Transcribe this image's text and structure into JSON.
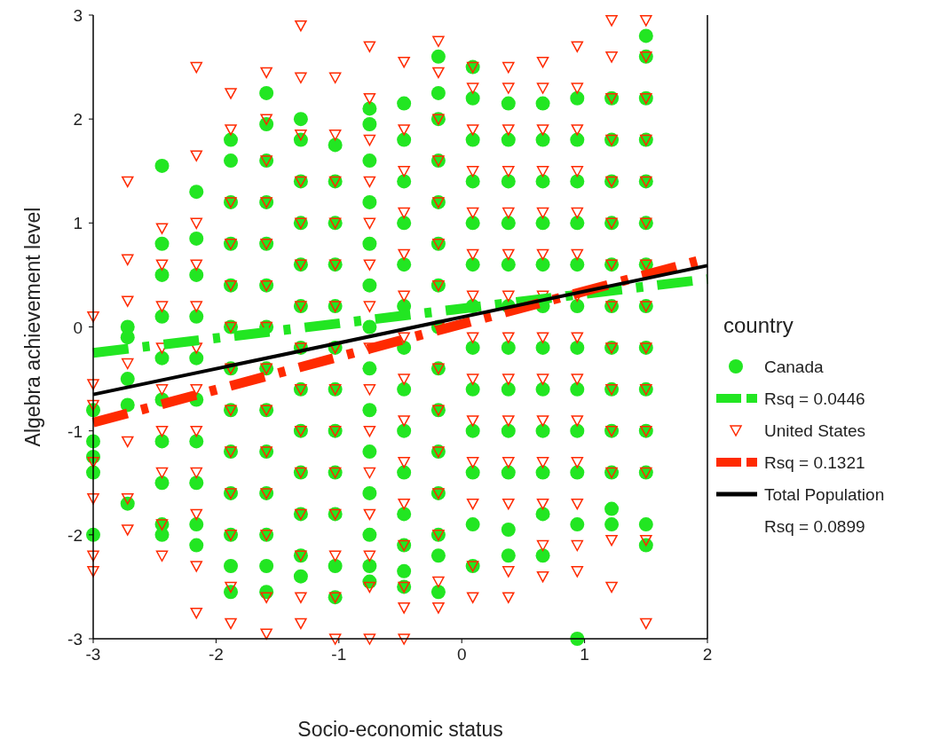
{
  "chart_data": {
    "type": "scatter",
    "xlabel": "Socio-economic status",
    "ylabel": "Algebra achievement level",
    "legend_title": "country",
    "legend": "right",
    "grid": false,
    "xlim": [
      -3,
      2
    ],
    "xticks": [
      -3,
      -2,
      -1,
      0,
      1,
      2
    ],
    "ylim": [
      -3,
      3
    ],
    "yticks": [
      -3,
      -2,
      -1,
      0,
      1,
      2,
      3
    ],
    "annotations": [
      "Rsq = 0.0899"
    ],
    "series": [
      {
        "name": "Canada",
        "marker": "circle",
        "color": "#22e622",
        "x": [
          -3,
          -3,
          -3,
          -3,
          -3,
          -2.72,
          -2.72,
          -2.72,
          -2.72,
          -2.72,
          -2.44,
          -2.44,
          -2.44,
          -2.44,
          -2.44,
          -2.44,
          -2.44,
          -2.44,
          -2.44,
          -2.44,
          -2.16,
          -2.16,
          -2.16,
          -2.16,
          -2.16,
          -2.16,
          -2.16,
          -2.16,
          -2.16,
          -2.16,
          -1.88,
          -1.88,
          -1.88,
          -1.88,
          -1.88,
          -1.88,
          -1.88,
          -1.88,
          -1.88,
          -1.88,
          -1.88,
          -1.88,
          -1.88,
          -1.59,
          -1.59,
          -1.59,
          -1.59,
          -1.59,
          -1.59,
          -1.59,
          -1.59,
          -1.59,
          -1.59,
          -1.59,
          -1.59,
          -1.59,
          -1.59,
          -1.31,
          -1.31,
          -1.31,
          -1.31,
          -1.31,
          -1.31,
          -1.31,
          -1.31,
          -1.31,
          -1.31,
          -1.31,
          -1.31,
          -1.31,
          -1.03,
          -1.03,
          -1.03,
          -1.03,
          -1.03,
          -1.03,
          -1.03,
          -1.03,
          -1.03,
          -1.03,
          -1.03,
          -1.03,
          -0.75,
          -0.75,
          -0.75,
          -0.75,
          -0.75,
          -0.75,
          -0.75,
          -0.75,
          -0.75,
          -0.75,
          -0.75,
          -0.75,
          -0.75,
          -0.75,
          -0.47,
          -0.47,
          -0.47,
          -0.47,
          -0.47,
          -0.47,
          -0.47,
          -0.47,
          -0.47,
          -0.47,
          -0.47,
          -0.47,
          -0.47,
          -0.47,
          -0.19,
          -0.19,
          -0.19,
          -0.19,
          -0.19,
          -0.19,
          -0.19,
          -0.19,
          -0.19,
          -0.19,
          -0.19,
          -0.19,
          -0.19,
          -0.19,
          -0.19,
          0.09,
          0.09,
          0.09,
          0.09,
          0.09,
          0.09,
          0.09,
          0.09,
          0.09,
          0.09,
          0.09,
          0.09,
          0.09,
          0.38,
          0.38,
          0.38,
          0.38,
          0.38,
          0.38,
          0.38,
          0.38,
          0.38,
          0.38,
          0.38,
          0.38,
          0.66,
          0.66,
          0.66,
          0.66,
          0.66,
          0.66,
          0.66,
          0.66,
          0.66,
          0.66,
          0.66,
          0.66,
          0.94,
          0.94,
          0.94,
          0.94,
          0.94,
          0.94,
          0.94,
          0.94,
          0.94,
          0.94,
          0.94,
          0.94,
          1.22,
          1.22,
          1.22,
          1.22,
          1.22,
          1.22,
          1.22,
          1.22,
          1.22,
          1.22,
          1.22,
          1.22,
          1.5,
          1.5,
          1.5,
          1.5,
          1.5,
          1.5,
          1.5,
          1.5,
          1.5,
          1.5,
          1.5,
          1.5,
          1.5,
          1.5
        ],
        "values": [
          -0.8,
          -1.1,
          -1.25,
          -1.4,
          -2.0,
          0,
          -0.1,
          -0.5,
          -0.75,
          -1.7,
          1.55,
          0.8,
          0.5,
          0.1,
          -0.3,
          -0.7,
          -1.1,
          -1.5,
          -1.9,
          -2.0,
          1.3,
          0.85,
          0.5,
          0.1,
          -0.3,
          -0.7,
          -1.1,
          -1.5,
          -1.9,
          -2.1,
          1.8,
          1.6,
          1.2,
          0.8,
          0.4,
          0,
          -0.4,
          -0.8,
          -1.2,
          -1.6,
          -2.0,
          -2.3,
          -2.55,
          2.25,
          1.95,
          1.6,
          1.2,
          0.8,
          0.4,
          0,
          -0.4,
          -0.8,
          -1.2,
          -1.6,
          -2.0,
          -2.3,
          -2.55,
          2.0,
          1.8,
          1.4,
          1.0,
          0.6,
          0.2,
          -0.2,
          -0.6,
          -1.0,
          -1.4,
          -1.8,
          -2.2,
          -2.4,
          1.75,
          1.4,
          1.0,
          0.6,
          0.2,
          -0.2,
          -0.6,
          -1.0,
          -1.4,
          -1.8,
          -2.3,
          -2.6,
          2.1,
          1.95,
          1.6,
          1.2,
          0.8,
          0.4,
          0,
          -0.4,
          -0.8,
          -1.2,
          -1.6,
          -2.0,
          -2.3,
          -2.45,
          2.15,
          1.8,
          1.4,
          1.0,
          0.6,
          0.2,
          -0.2,
          -0.6,
          -1.0,
          -1.4,
          -1.8,
          -2.1,
          -2.35,
          -2.5,
          2.6,
          2.25,
          2.0,
          1.6,
          1.2,
          0.8,
          0.4,
          0,
          -0.4,
          -0.8,
          -1.2,
          -1.6,
          -2.0,
          -2.2,
          -2.55,
          2.5,
          2.2,
          1.8,
          1.4,
          1.0,
          0.6,
          0.2,
          -0.2,
          -0.6,
          -1.0,
          -1.4,
          -1.9,
          -2.3,
          2.15,
          1.8,
          1.4,
          1.0,
          0.6,
          0.2,
          -0.2,
          -0.6,
          -1.0,
          -1.4,
          -1.95,
          -2.2,
          2.15,
          1.8,
          1.4,
          1.0,
          0.6,
          0.2,
          -0.2,
          -0.6,
          -1.0,
          -1.4,
          -1.8,
          -2.2,
          2.2,
          1.8,
          1.4,
          1.0,
          0.6,
          0.2,
          -0.2,
          -0.6,
          -1.0,
          -1.4,
          -1.9,
          -3.0,
          2.2,
          1.8,
          1.4,
          1.0,
          0.6,
          0.2,
          -0.2,
          -0.6,
          -1.0,
          -1.4,
          -1.75,
          -1.9,
          2.8,
          2.6,
          2.2,
          1.8,
          1.4,
          1.0,
          0.6,
          0.2,
          -0.2,
          -0.6,
          -1.0,
          -1.4,
          -1.9,
          -2.1
        ]
      },
      {
        "name": "Rsq = 0.0446",
        "type": "line",
        "line_style": "dashed",
        "marker": "none",
        "color": "#22e622",
        "x": [
          -3,
          2
        ],
        "values": [
          -0.25,
          0.46
        ]
      },
      {
        "name": "United States",
        "marker": "triangle",
        "color": "#ff2a00",
        "x": [
          -3,
          -3,
          -3,
          -3,
          -3,
          -3,
          -3,
          -2.72,
          -2.72,
          -2.72,
          -2.72,
          -2.72,
          -2.72,
          -2.72,
          -2.44,
          -2.44,
          -2.44,
          -2.44,
          -2.44,
          -2.44,
          -2.44,
          -2.44,
          -2.44,
          -2.16,
          -2.16,
          -2.16,
          -2.16,
          -2.16,
          -2.16,
          -2.16,
          -2.16,
          -2.16,
          -2.16,
          -2.16,
          -2.16,
          -1.88,
          -1.88,
          -1.88,
          -1.88,
          -1.88,
          -1.88,
          -1.88,
          -1.88,
          -1.88,
          -1.88,
          -1.88,
          -1.88,
          -1.88,
          -1.59,
          -1.59,
          -1.59,
          -1.59,
          -1.59,
          -1.59,
          -1.59,
          -1.59,
          -1.59,
          -1.59,
          -1.59,
          -1.59,
          -1.59,
          -1.59,
          -1.31,
          -1.31,
          -1.31,
          -1.31,
          -1.31,
          -1.31,
          -1.31,
          -1.31,
          -1.31,
          -1.31,
          -1.31,
          -1.31,
          -1.31,
          -1.31,
          -1.31,
          -1.03,
          -1.03,
          -1.03,
          -1.03,
          -1.03,
          -1.03,
          -1.03,
          -1.03,
          -1.03,
          -1.03,
          -1.03,
          -1.03,
          -1.03,
          -1.03,
          -0.75,
          -0.75,
          -0.75,
          -0.75,
          -0.75,
          -0.75,
          -0.75,
          -0.75,
          -0.75,
          -0.75,
          -0.75,
          -0.75,
          -0.75,
          -0.75,
          -0.75,
          -0.47,
          -0.47,
          -0.47,
          -0.47,
          -0.47,
          -0.47,
          -0.47,
          -0.47,
          -0.47,
          -0.47,
          -0.47,
          -0.47,
          -0.47,
          -0.47,
          -0.47,
          -0.19,
          -0.19,
          -0.19,
          -0.19,
          -0.19,
          -0.19,
          -0.19,
          -0.19,
          -0.19,
          -0.19,
          -0.19,
          -0.19,
          -0.19,
          -0.19,
          -0.19,
          0.09,
          0.09,
          0.09,
          0.09,
          0.09,
          0.09,
          0.09,
          0.09,
          0.09,
          0.09,
          0.09,
          0.09,
          0.09,
          0.09,
          0.38,
          0.38,
          0.38,
          0.38,
          0.38,
          0.38,
          0.38,
          0.38,
          0.38,
          0.38,
          0.38,
          0.38,
          0.38,
          0.38,
          0.66,
          0.66,
          0.66,
          0.66,
          0.66,
          0.66,
          0.66,
          0.66,
          0.66,
          0.66,
          0.66,
          0.66,
          0.66,
          0.66,
          0.94,
          0.94,
          0.94,
          0.94,
          0.94,
          0.94,
          0.94,
          0.94,
          0.94,
          0.94,
          0.94,
          0.94,
          0.94,
          0.94,
          1.22,
          1.22,
          1.22,
          1.22,
          1.22,
          1.22,
          1.22,
          1.22,
          1.22,
          1.22,
          1.22,
          1.22,
          1.22,
          1.22,
          1.5,
          1.5,
          1.5,
          1.5,
          1.5,
          1.5,
          1.5,
          1.5,
          1.5,
          1.5,
          1.5,
          1.5,
          1.5,
          1.5
        ],
        "values": [
          0.1,
          -0.55,
          -0.75,
          -1.3,
          -1.65,
          -2.2,
          -2.35,
          1.4,
          0.65,
          0.25,
          -0.35,
          -1.1,
          -1.65,
          -1.95,
          0.95,
          0.6,
          0.2,
          -0.2,
          -0.6,
          -1.0,
          -1.4,
          -1.9,
          -2.2,
          2.5,
          1.65,
          1.0,
          0.6,
          0.2,
          -0.2,
          -0.6,
          -1.0,
          -1.4,
          -1.8,
          -2.3,
          -2.75,
          2.25,
          1.9,
          1.2,
          0.8,
          0.4,
          0,
          -0.4,
          -0.8,
          -1.2,
          -1.6,
          -2.0,
          -2.5,
          -2.85,
          2.45,
          2.0,
          1.6,
          1.2,
          0.8,
          0.4,
          0,
          -0.4,
          -0.8,
          -1.2,
          -1.6,
          -2.0,
          -2.6,
          -2.95,
          2.9,
          2.4,
          1.85,
          1.4,
          1.0,
          0.6,
          0.2,
          -0.2,
          -0.6,
          -1.0,
          -1.4,
          -1.8,
          -2.2,
          -2.6,
          -2.85,
          2.4,
          1.85,
          1.4,
          1.0,
          0.6,
          0.2,
          -0.2,
          -0.6,
          -1.0,
          -1.4,
          -1.8,
          -2.2,
          -2.6,
          -3.0,
          2.7,
          2.2,
          1.8,
          1.4,
          1.0,
          0.6,
          0.2,
          -0.2,
          -0.6,
          -1.0,
          -1.4,
          -1.8,
          -2.2,
          -2.5,
          -3.0,
          2.55,
          1.9,
          1.5,
          1.1,
          0.7,
          0.3,
          -0.1,
          -0.5,
          -0.9,
          -1.3,
          -1.7,
          -2.1,
          -2.5,
          -2.7,
          -3.0,
          2.75,
          2.45,
          2.0,
          1.6,
          1.2,
          0.8,
          0.4,
          0,
          -0.4,
          -0.8,
          -1.2,
          -1.6,
          -2.0,
          -2.45,
          -2.7,
          2.5,
          2.3,
          1.9,
          1.5,
          1.1,
          0.7,
          0.3,
          -0.1,
          -0.5,
          -0.9,
          -1.3,
          -1.7,
          -2.3,
          -2.6,
          2.5,
          2.3,
          1.9,
          1.5,
          1.1,
          0.7,
          0.3,
          -0.1,
          -0.5,
          -0.9,
          -1.3,
          -1.7,
          -2.35,
          -2.6,
          2.55,
          2.3,
          1.9,
          1.5,
          1.1,
          0.7,
          0.3,
          -0.1,
          -0.5,
          -0.9,
          -1.3,
          -1.7,
          -2.1,
          -2.4,
          2.7,
          2.3,
          1.9,
          1.5,
          1.1,
          0.7,
          0.3,
          -0.1,
          -0.5,
          -0.9,
          -1.3,
          -1.7,
          -2.1,
          -2.35,
          2.95,
          2.6,
          2.2,
          1.8,
          1.4,
          1.0,
          0.6,
          0.2,
          -0.2,
          -0.6,
          -1.0,
          -1.4,
          -2.05,
          -2.5,
          2.95,
          2.6,
          2.2,
          1.8,
          1.4,
          1.0,
          0.6,
          0.2,
          -0.2,
          -0.6,
          -1.0,
          -1.4,
          -2.05,
          -2.85
        ]
      },
      {
        "name": "Rsq = 0.1321",
        "type": "line",
        "line_style": "dashed",
        "marker": "none",
        "color": "#ff2a00",
        "x": [
          -3,
          2
        ],
        "values": [
          -0.92,
          0.66
        ]
      },
      {
        "name": "Total Population",
        "type": "line",
        "line_style": "solid",
        "marker": "none",
        "color": "#000000",
        "x": [
          -3,
          2
        ],
        "values": [
          -0.65,
          0.59
        ]
      }
    ]
  }
}
